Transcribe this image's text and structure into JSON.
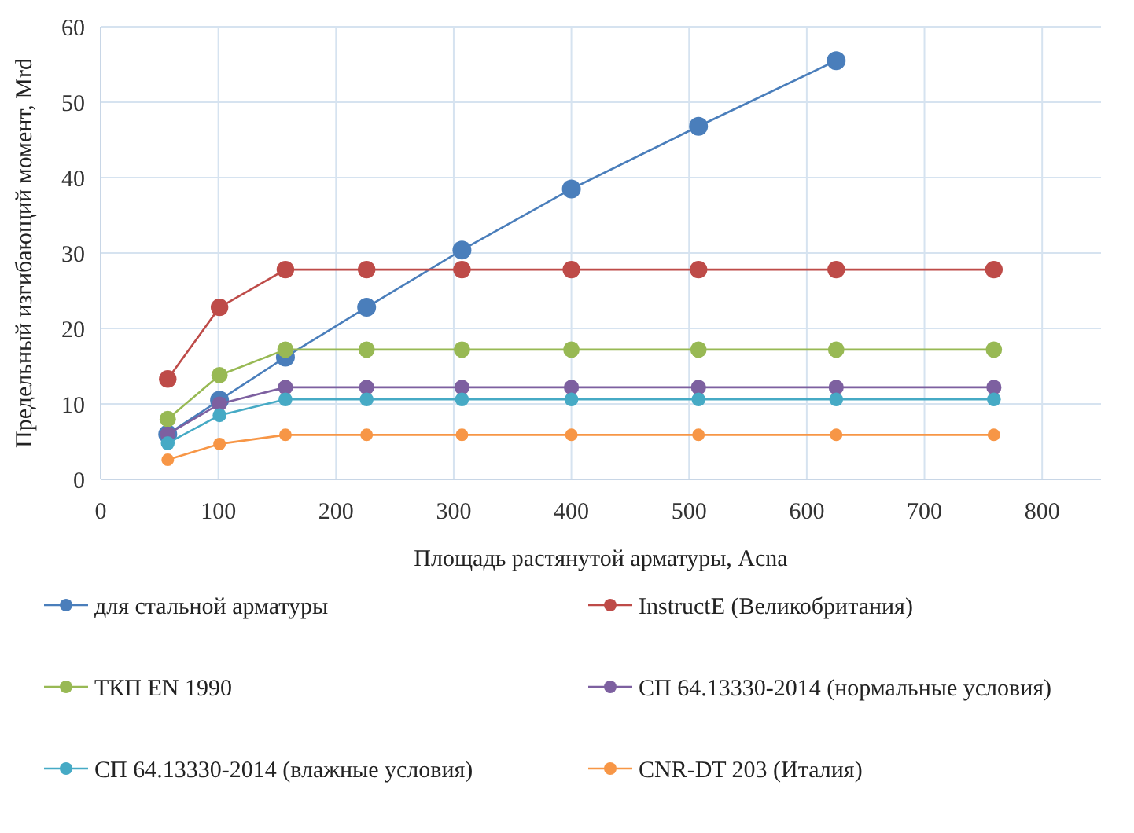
{
  "chart_data": {
    "type": "line",
    "xlabel": "Площадь растянутой арматуры, Acna",
    "ylabel": "Предельный изгибающий момент, Mrd",
    "x": [
      57,
      101,
      157,
      226,
      307,
      400,
      508,
      625,
      759
    ],
    "series": [
      {
        "name": "для стальной арматуры",
        "color": "#4a7ebb",
        "values": [
          6,
          10.5,
          16.2,
          22.8,
          30.4,
          38.5,
          46.8,
          55.5,
          null
        ]
      },
      {
        "name": "InstructE (Великобритания)",
        "color": "#be4b48",
        "values": [
          13.3,
          22.8,
          27.8,
          27.8,
          27.8,
          27.8,
          27.8,
          27.8,
          27.8
        ]
      },
      {
        "name": "ТКП EN 1990",
        "color": "#98b954",
        "values": [
          8,
          13.8,
          17.2,
          17.2,
          17.2,
          17.2,
          17.2,
          17.2,
          17.2
        ]
      },
      {
        "name": "СП 64.13330-2014 (нормальные условия)",
        "color": "#7d60a0",
        "values": [
          6,
          10,
          12.2,
          12.2,
          12.2,
          12.2,
          12.2,
          12.2,
          12.2
        ]
      },
      {
        "name": "СП 64.13330-2014 (влажные условия)",
        "color": "#46aac5",
        "values": [
          4.8,
          8.5,
          10.6,
          10.6,
          10.6,
          10.6,
          10.6,
          10.6,
          10.6
        ]
      },
      {
        "name": "CNR-DT 203 (Италия)",
        "color": "#f79646",
        "values": [
          2.6,
          4.7,
          5.9,
          5.9,
          5.9,
          5.9,
          5.9,
          5.9,
          5.9
        ]
      }
    ],
    "xlim": [
      0,
      850
    ],
    "xticks": [
      0,
      100,
      200,
      300,
      400,
      500,
      600,
      700,
      800
    ],
    "ylim": [
      0,
      60
    ],
    "yticks": [
      0,
      10,
      20,
      30,
      40,
      50,
      60
    ],
    "grid": true,
    "legend": "bottom",
    "marker": "circle",
    "line_style": "solid"
  }
}
